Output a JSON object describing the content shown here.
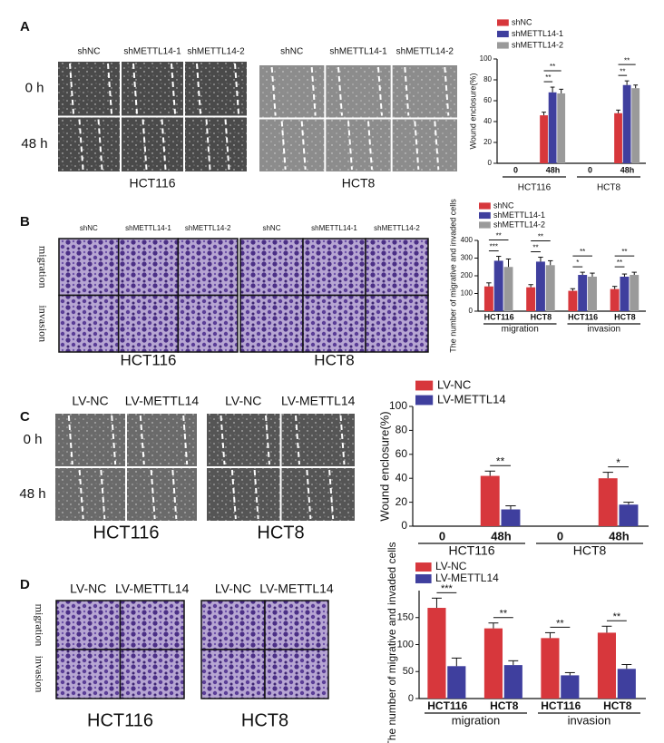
{
  "panels": [
    {
      "letter": "A",
      "column_labels": [
        "shNC",
        "shMETTL14-1",
        "shMETTL14-2",
        "shNC",
        "shMETTL14-1",
        "shMETTL14-2"
      ],
      "row_labels": [
        "0 h",
        "48 h"
      ],
      "group_labels": [
        "HCT116",
        "HCT8"
      ]
    },
    {
      "letter": "B",
      "column_labels": [
        "shNC",
        "shMETTL14-1",
        "shMETTL14-2",
        "shNC",
        "shMETTL14-1",
        "shMETTL14-2"
      ],
      "row_labels": [
        "migration",
        "invasion"
      ],
      "group_labels": [
        "HCT116",
        "HCT8"
      ]
    },
    {
      "letter": "C",
      "column_labels": [
        "LV-NC",
        "LV-METTL14",
        "LV-NC",
        "LV-METTL14"
      ],
      "row_labels": [
        "0 h",
        "48 h"
      ],
      "group_labels": [
        "HCT116",
        "HCT8"
      ]
    },
    {
      "letter": "D",
      "column_labels": [
        "LV-NC",
        "LV-METTL14",
        "LV-NC",
        "LV-METTL14"
      ],
      "row_labels": [
        "migration",
        "invasion"
      ],
      "group_labels": [
        "HCT116",
        "HCT8"
      ]
    }
  ],
  "chart_data": [
    {
      "type": "bar",
      "ylabel": "Wound enclosure(%)",
      "categories": [
        "0",
        "48h",
        "0",
        "48h"
      ],
      "group_labels": [
        "HCT116",
        "HCT8"
      ],
      "series": [
        {
          "name": "shNC",
          "color": "#d7373c",
          "values": [
            0,
            46,
            0,
            48
          ],
          "errors": [
            null,
            3,
            null,
            3
          ]
        },
        {
          "name": "shMETTL14-1",
          "color": "#3f3f9e",
          "values": [
            0,
            68,
            0,
            75
          ],
          "errors": [
            null,
            5,
            null,
            4
          ]
        },
        {
          "name": "shMETTL14-2",
          "color": "#9a9a9a",
          "values": [
            0,
            67,
            0,
            72
          ],
          "errors": [
            null,
            4,
            null,
            3
          ]
        }
      ],
      "annotations": [
        "**",
        "**",
        "**",
        "**"
      ],
      "ylim": [
        0,
        100
      ],
      "yticks": [
        0,
        20,
        40,
        60,
        80,
        100
      ]
    },
    {
      "type": "bar",
      "ylabel": "The number of migrative and invaded cells",
      "categories": [
        "HCT116",
        "HCT8",
        "HCT116",
        "HCT8"
      ],
      "group_labels": [
        "migration",
        "invasion"
      ],
      "series": [
        {
          "name": "shNC",
          "color": "#d7373c",
          "values": [
            140,
            135,
            115,
            125
          ],
          "errors": [
            20,
            15,
            12,
            15
          ]
        },
        {
          "name": "shMETTL14-1",
          "color": "#3f3f9e",
          "values": [
            285,
            280,
            205,
            195
          ],
          "errors": [
            25,
            25,
            15,
            15
          ]
        },
        {
          "name": "shMETTL14-2",
          "color": "#9a9a9a",
          "values": [
            250,
            260,
            195,
            205
          ],
          "errors": [
            45,
            25,
            20,
            15
          ]
        }
      ],
      "annotations": [
        "***",
        "**",
        "**",
        "**",
        "*",
        "**",
        "**",
        "**"
      ],
      "ylim": [
        0,
        400
      ],
      "yticks": [
        0,
        100,
        200,
        300,
        400
      ]
    },
    {
      "type": "bar",
      "ylabel": "Wound enclosure(%)",
      "categories": [
        "0",
        "48h",
        "0",
        "48h"
      ],
      "group_labels": [
        "HCT116",
        "HCT8"
      ],
      "series": [
        {
          "name": "LV-NC",
          "color": "#d7373c",
          "values": [
            0,
            42,
            0,
            40
          ],
          "errors": [
            null,
            4,
            null,
            5
          ]
        },
        {
          "name": "LV-METTL14",
          "color": "#3f3f9e",
          "values": [
            0,
            14,
            0,
            18
          ],
          "errors": [
            null,
            3,
            null,
            2
          ]
        }
      ],
      "annotations": [
        "**",
        "*"
      ],
      "ylim": [
        0,
        100
      ],
      "yticks": [
        0,
        20,
        40,
        60,
        80,
        100
      ]
    },
    {
      "type": "bar",
      "ylabel": "The number of migrative and invaded cells",
      "categories": [
        "HCT116",
        "HCT8",
        "HCT116",
        "HCT8"
      ],
      "group_labels": [
        "migration",
        "invasion"
      ],
      "series": [
        {
          "name": "LV-NC",
          "color": "#d7373c",
          "values": [
            168,
            130,
            112,
            122
          ],
          "errors": [
            18,
            10,
            10,
            12
          ]
        },
        {
          "name": "LV-METTL14",
          "color": "#3f3f9e",
          "values": [
            60,
            62,
            43,
            55
          ],
          "errors": [
            15,
            8,
            5,
            8
          ]
        }
      ],
      "annotations": [
        "***",
        "**",
        "**",
        "**"
      ],
      "ylim": [
        0,
        200
      ],
      "yticks": [
        0,
        50,
        100,
        150
      ]
    }
  ]
}
